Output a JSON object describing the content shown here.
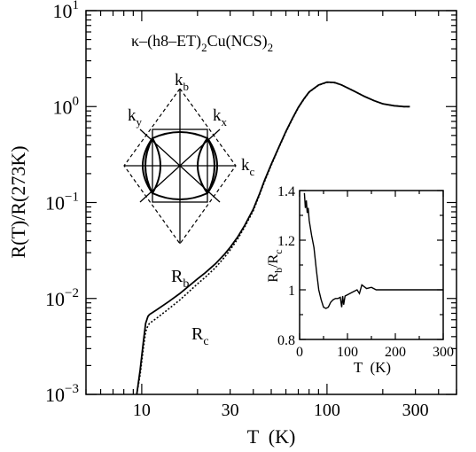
{
  "chart_data": [
    {
      "type": "line",
      "title": "κ–(h8–ET)₂Cu(NCS)₂",
      "title_parts": {
        "kappa": "κ–(h8–ET)",
        "sub1": "2",
        "mid": "Cu(NCS)",
        "sub2": "2"
      },
      "xlabel": "T  (K)",
      "ylabel": "R(T)/R(273K)",
      "xscale": "log",
      "yscale": "log",
      "xlim": [
        5,
        500
      ],
      "ylim": [
        0.001,
        10
      ],
      "x_ticks": [
        {
          "value": 10,
          "label": "10"
        },
        {
          "value": 30,
          "label": "30"
        },
        {
          "value": 100,
          "label": "100"
        },
        {
          "value": 300,
          "label": "300"
        }
      ],
      "y_ticks": [
        {
          "value": 0.001,
          "base": "10",
          "exp": "−3"
        },
        {
          "value": 0.01,
          "base": "10",
          "exp": "−2"
        },
        {
          "value": 0.1,
          "base": "10",
          "exp": "−1"
        },
        {
          "value": 1,
          "base": "10",
          "exp": "0"
        },
        {
          "value": 10,
          "base": "10",
          "exp": "1"
        }
      ],
      "series": [
        {
          "name": "R_b",
          "label_main": "R",
          "label_sub": "b",
          "style": "solid",
          "x": [
            9.4,
            9.8,
            10.2,
            10.5,
            10.8,
            11,
            12,
            14,
            16,
            18,
            20,
            22,
            25,
            28,
            30,
            33,
            36,
            40,
            43,
            46,
            50,
            55,
            60,
            65,
            70,
            75,
            80,
            90,
            100,
            110,
            120,
            140,
            160,
            180,
            200,
            230,
            260,
            280
          ],
          "y": [
            0.001,
            0.0018,
            0.0035,
            0.0055,
            0.0065,
            0.0068,
            0.0076,
            0.0093,
            0.0112,
            0.0135,
            0.016,
            0.0185,
            0.023,
            0.029,
            0.034,
            0.044,
            0.058,
            0.085,
            0.12,
            0.17,
            0.25,
            0.38,
            0.55,
            0.75,
            0.98,
            1.2,
            1.42,
            1.68,
            1.8,
            1.78,
            1.68,
            1.45,
            1.27,
            1.15,
            1.07,
            1.02,
            1.0,
            1.0
          ]
        },
        {
          "name": "R_c",
          "label_main": "R",
          "label_sub": "c",
          "style": "dotted",
          "x": [
            9.4,
            9.8,
            10.2,
            10.5,
            10.8,
            11,
            12,
            14,
            16,
            18,
            20,
            22,
            25,
            28,
            30,
            33,
            36,
            40,
            43,
            46,
            50,
            55,
            60,
            65,
            70,
            75,
            80,
            90,
            100,
            110,
            120,
            140,
            160,
            180,
            200,
            230,
            260,
            280
          ],
          "y": [
            0.001,
            0.0016,
            0.003,
            0.0045,
            0.0052,
            0.0055,
            0.0062,
            0.0078,
            0.0096,
            0.0118,
            0.0142,
            0.0166,
            0.021,
            0.027,
            0.032,
            0.042,
            0.056,
            0.082,
            0.117,
            0.165,
            0.245,
            0.375,
            0.54,
            0.74,
            0.97,
            1.19,
            1.41,
            1.67,
            1.79,
            1.77,
            1.68,
            1.45,
            1.27,
            1.15,
            1.07,
            1.02,
            1.0,
            1.0
          ]
        }
      ]
    },
    {
      "type": "line",
      "xlabel": "T  (K)",
      "ylabel_main": "R",
      "ylabel_sub1": "b",
      "ylabel_sep": "/R",
      "ylabel_sub2": "c",
      "xlim": [
        0,
        300
      ],
      "ylim": [
        0.8,
        1.4
      ],
      "x_ticks": [
        "0",
        "100",
        "200",
        "300"
      ],
      "x_tick_values": [
        0,
        100,
        200,
        300
      ],
      "y_ticks": [
        "0.8",
        "1",
        "1.2",
        "1.4"
      ],
      "y_tick_values": [
        0.8,
        1.0,
        1.2,
        1.4
      ],
      "series": [
        {
          "x": [
            10,
            12,
            14,
            16,
            18,
            20,
            25,
            30,
            35,
            40,
            45,
            50,
            55,
            60,
            65,
            70,
            75,
            80,
            85,
            88,
            90,
            92,
            95,
            100,
            110,
            120,
            125,
            130,
            140,
            150,
            160,
            200,
            250,
            300
          ],
          "y": [
            1.39,
            1.33,
            1.36,
            1.31,
            1.33,
            1.28,
            1.22,
            1.17,
            1.08,
            1.0,
            0.96,
            0.93,
            0.925,
            0.93,
            0.95,
            0.96,
            0.965,
            0.965,
            0.97,
            0.93,
            0.975,
            0.94,
            0.975,
            0.98,
            0.99,
            1.0,
            0.985,
            1.02,
            1.005,
            1.01,
            1.0,
            1.0,
            1.0,
            1.0
          ]
        }
      ]
    }
  ],
  "diagram": {
    "labels": {
      "kb": {
        "main": "k",
        "sub": "b"
      },
      "kx": {
        "main": "k",
        "sub": "x"
      },
      "ky": {
        "main": "k",
        "sub": "y"
      },
      "kc": {
        "main": "k",
        "sub": "c"
      }
    }
  }
}
